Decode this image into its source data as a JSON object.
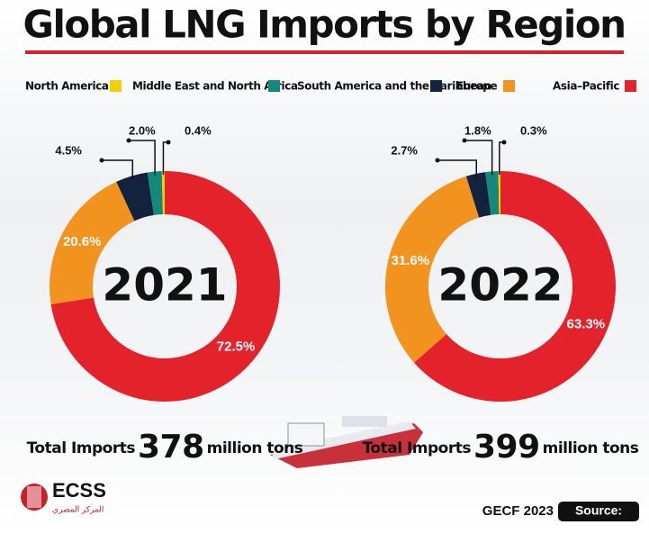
{
  "title": "Global LNG Imports by Region",
  "chart_data": [
    {
      "type": "pie",
      "center_label": "2021",
      "categories": [
        "North America",
        "Middle East and North Africa",
        "South America and the Caribbean",
        "Europe",
        "Asia–Pacific"
      ],
      "values": [
        0.4,
        2.0,
        4.5,
        20.6,
        72.5
      ],
      "value_labels": [
        "0.4%",
        "2.0%",
        "4.5%",
        "20.6%",
        "72.5%"
      ],
      "colors": [
        "#f3d000",
        "#12897a",
        "#14233d",
        "#f2931f",
        "#e3222b"
      ],
      "total_label": "Total Imports",
      "total": 378,
      "total_unit": "million tons"
    },
    {
      "type": "pie",
      "center_label": "2022",
      "categories": [
        "North America",
        "Middle East and North Africa",
        "South America and the Caribbean",
        "Europe",
        "Asia–Pacific"
      ],
      "values": [
        0.3,
        1.8,
        2.7,
        31.6,
        63.3
      ],
      "value_labels": [
        "0.3%",
        "1.8%",
        "2.7%",
        "31.6%",
        "63.3%"
      ],
      "colors": [
        "#f3d000",
        "#12897a",
        "#14233d",
        "#f2931f",
        "#e3222b"
      ],
      "total_label": "Total Imports",
      "total": 399,
      "total_unit": "million tons"
    }
  ],
  "footer": {
    "logo": "ECSS",
    "logo_sub": "المركز المصري",
    "source_label": "Source:",
    "source": "GECF 2023"
  }
}
